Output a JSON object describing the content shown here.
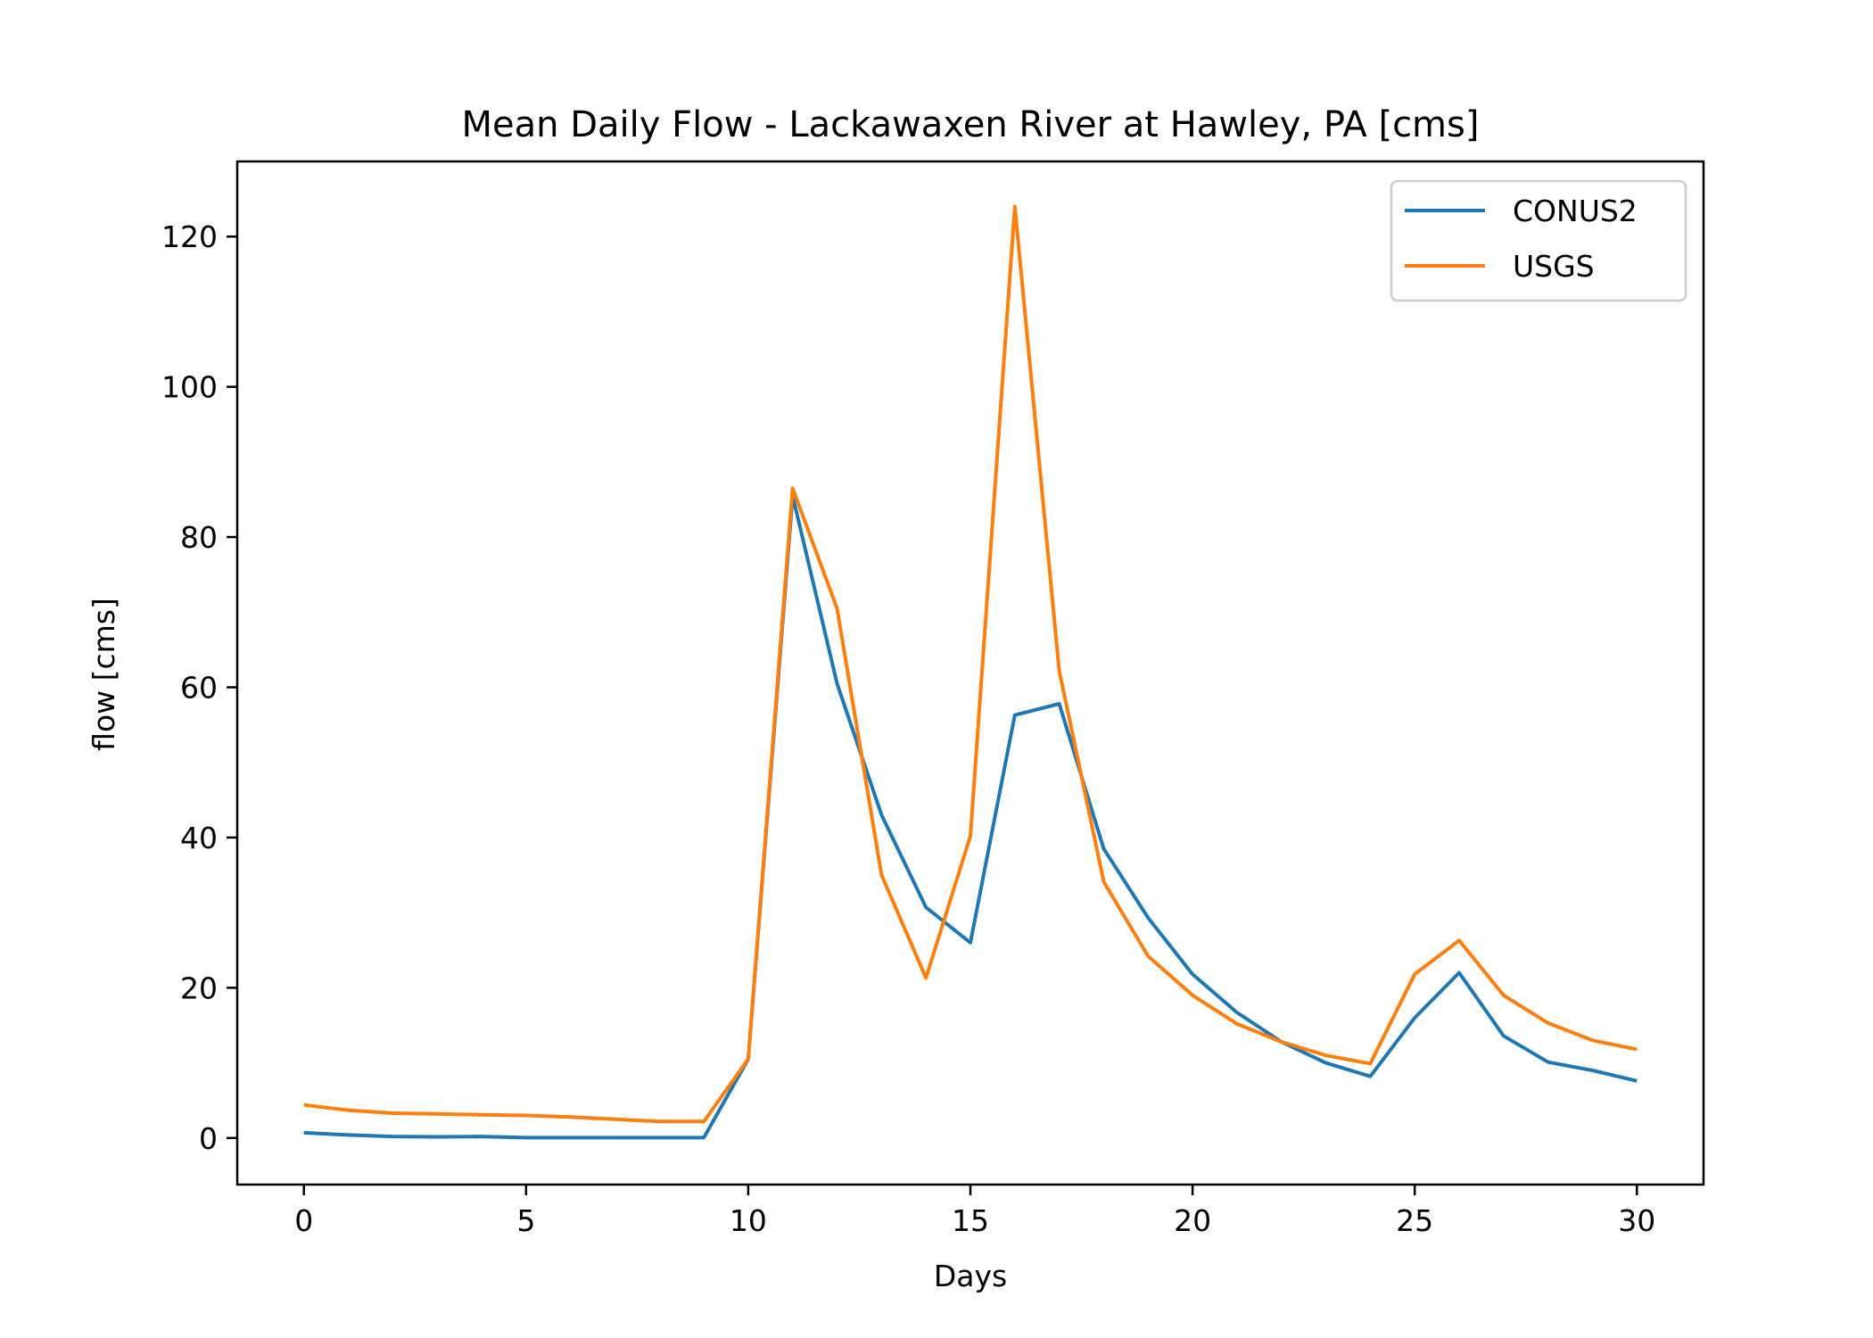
{
  "chart_data": {
    "type": "line",
    "title": "Mean Daily Flow - Lackawaxen River at Hawley, PA [cms]",
    "xlabel": "Days",
    "ylabel": "flow [cms]",
    "xlim": [
      -1.5,
      31.5
    ],
    "ylim": [
      -6.2,
      130
    ],
    "xticks": [
      0,
      5,
      10,
      15,
      20,
      25,
      30
    ],
    "yticks": [
      0,
      20,
      40,
      60,
      80,
      100,
      120
    ],
    "grid": false,
    "legend": "upper-right",
    "x": [
      0,
      1,
      2,
      3,
      4,
      5,
      6,
      7,
      8,
      9,
      10,
      11,
      12,
      13,
      14,
      15,
      16,
      17,
      18,
      19,
      20,
      21,
      22,
      23,
      24,
      25,
      26,
      27,
      28,
      29,
      30
    ],
    "series": [
      {
        "name": "CONUS2",
        "color": "#1f77b4",
        "values": [
          0.7,
          0.4,
          0.2,
          0.15,
          0.2,
          0.05,
          0.05,
          0.05,
          0.05,
          0.05,
          10.5,
          85.5,
          60.5,
          43,
          30.7,
          26,
          56.3,
          57.8,
          38.5,
          29.3,
          21.8,
          16.7,
          12.8,
          10,
          8.2,
          16,
          22,
          13.6,
          10.1,
          9,
          7.6
        ]
      },
      {
        "name": "USGS",
        "color": "#ff7f0e",
        "values": [
          4.4,
          3.7,
          3.3,
          3.2,
          3.1,
          3,
          2.8,
          2.5,
          2.2,
          2.2,
          10.5,
          86.5,
          70.5,
          35,
          21.3,
          40.2,
          124,
          62.2,
          34.1,
          24.2,
          19,
          15.2,
          12.8,
          11,
          9.9,
          21.8,
          26.3,
          19,
          15.3,
          13,
          11.8
        ]
      }
    ]
  }
}
